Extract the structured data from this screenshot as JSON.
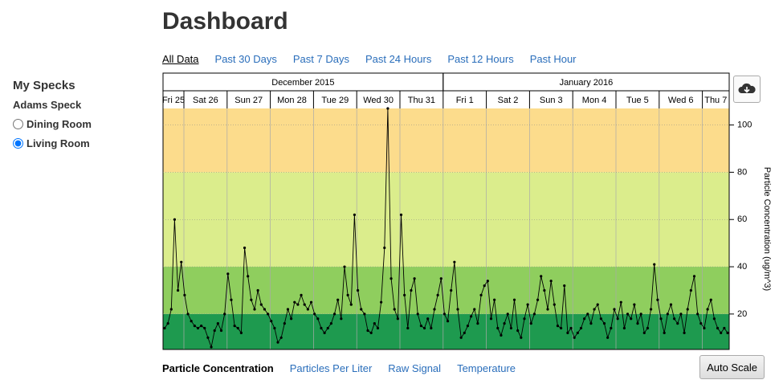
{
  "header": {
    "title": "Dashboard"
  },
  "time_tabs": {
    "items": [
      "All Data",
      "Past 30 Days",
      "Past 7 Days",
      "Past 24 Hours",
      "Past 12 Hours",
      "Past Hour"
    ],
    "active": 0
  },
  "sidebar": {
    "title": "My Specks",
    "group": "Adams Speck",
    "options": [
      "Dining Room",
      "Living Room"
    ],
    "selected": 1
  },
  "chart_data": {
    "type": "line",
    "months": [
      {
        "label": "December 2015",
        "days": [
          "Fri 25",
          "Sat 26",
          "Sun 27",
          "Mon 28",
          "Tue 29",
          "Wed 30",
          "Thu 31"
        ]
      },
      {
        "label": "January 2016",
        "days": [
          "Fri 1",
          "Sat 2",
          "Sun 3",
          "Mon 4",
          "Tue 5",
          "Wed 6",
          "Thu 7"
        ]
      }
    ],
    "values": [
      14,
      16,
      22,
      60,
      30,
      42,
      28,
      20,
      17,
      15,
      14,
      15,
      14,
      10,
      6,
      13,
      16,
      13,
      20,
      37,
      26,
      15,
      14,
      12,
      48,
      36,
      26,
      22,
      30,
      24,
      22,
      20,
      17,
      14,
      8,
      10,
      16,
      22,
      18,
      25,
      24,
      28,
      24,
      22,
      25,
      20,
      18,
      14,
      12,
      14,
      16,
      20,
      26,
      18,
      40,
      28,
      24,
      62,
      30,
      22,
      20,
      13,
      12,
      16,
      14,
      25,
      48,
      107,
      35,
      22,
      18,
      62,
      28,
      14,
      30,
      35,
      20,
      15,
      14,
      18,
      14,
      22,
      28,
      35,
      20,
      17,
      30,
      42,
      22,
      10,
      12,
      15,
      19,
      22,
      16,
      28,
      32,
      34,
      18,
      26,
      14,
      11,
      16,
      20,
      14,
      26,
      13,
      10,
      18,
      24,
      16,
      20,
      26,
      36,
      30,
      22,
      34,
      24,
      15,
      14,
      32,
      12,
      14,
      10,
      12,
      14,
      18,
      20,
      16,
      22,
      24,
      18,
      16,
      10,
      14,
      22,
      18,
      25,
      14,
      20,
      18,
      24,
      16,
      20,
      12,
      14,
      22,
      41,
      26,
      18,
      12,
      20,
      24,
      18,
      16,
      20,
      12,
      22,
      30,
      36,
      20,
      16,
      14,
      22,
      26,
      18,
      14,
      12,
      14,
      12
    ],
    "color": "#000000",
    "ylabel": "Particle Concentration (ug/m^3)",
    "ylim": [
      5,
      107
    ],
    "yticks": [
      20,
      40,
      60,
      80,
      100
    ],
    "bands": [
      {
        "max": 20,
        "color": "#1e9a4f"
      },
      {
        "max": 40,
        "color": "#8fce5e"
      },
      {
        "max": 80,
        "color": "#dbed8c"
      },
      {
        "max": 107,
        "color": "#fcdc8c"
      }
    ]
  },
  "metric_tabs": {
    "items": [
      "Particle Concentration",
      "Particles Per Liter",
      "Raw Signal",
      "Temperature"
    ],
    "active": 0
  },
  "button": "Auto Scale"
}
